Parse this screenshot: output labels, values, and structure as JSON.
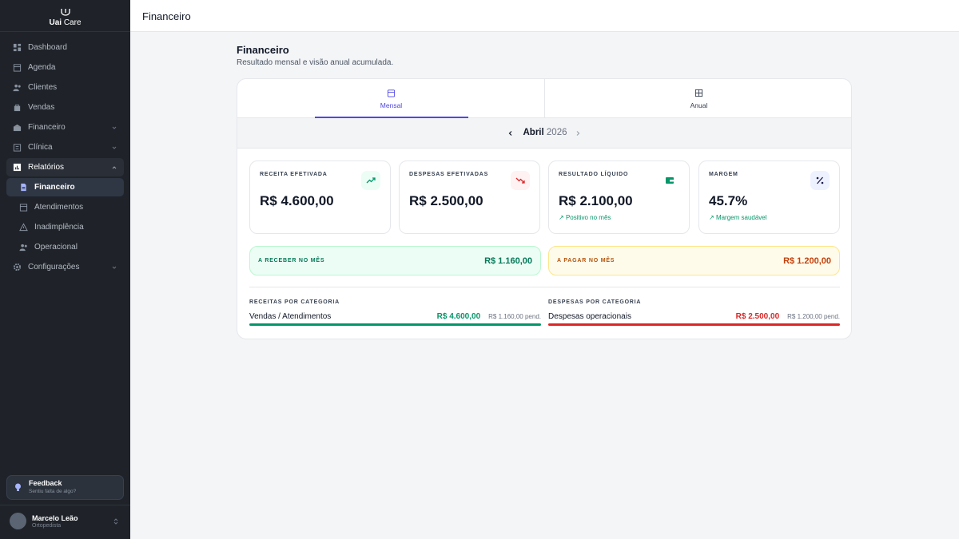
{
  "sidebar": {
    "logo": {
      "brand": "Uai",
      "brand_suffix": "Care"
    },
    "nav": [
      {
        "label": "Dashboard"
      },
      {
        "label": "Agenda"
      },
      {
        "label": "Clientes"
      },
      {
        "label": "Vendas"
      },
      {
        "label": "Financeiro"
      },
      {
        "label": "Clínica"
      },
      {
        "label": "Relatórios"
      }
    ],
    "sub_nav": [
      {
        "label": "Financeiro"
      },
      {
        "label": "Atendimentos"
      },
      {
        "label": "Inadimplência"
      },
      {
        "label": "Operacional"
      }
    ],
    "settings": {
      "label": "Configurações"
    },
    "feedback": {
      "title": "Feedback",
      "subtitle": "Sentiu falta de algo?"
    },
    "user": {
      "name": "Marcelo Leão",
      "role": "Ortopedista"
    }
  },
  "topbar": {
    "title": "Financeiro"
  },
  "page": {
    "title": "Financeiro",
    "subtitle": "Resultado mensal e visão anual acumulada."
  },
  "tabs": [
    {
      "label": "Mensal"
    },
    {
      "label": "Anual"
    }
  ],
  "period": {
    "month": "Abril",
    "year": "2026"
  },
  "kpis": [
    {
      "label": "RECEITA EFETIVADA",
      "value": "R$ 4.600,00"
    },
    {
      "label": "DESPESAS EFETIVADAS",
      "value": "R$ 2.500,00"
    },
    {
      "label": "RESULTADO LÍQUIDO",
      "value": "R$ 2.100,00",
      "note": "Positivo no mês"
    },
    {
      "label": "MARGEM",
      "value": "45.7%",
      "note": "Margem saudável"
    }
  ],
  "pending": {
    "receivable": {
      "label": "A RECEBER NO MÊS",
      "value": "R$ 1.160,00"
    },
    "payable": {
      "label": "A PAGAR NO MÊS",
      "value": "R$ 1.200,00"
    }
  },
  "categories": {
    "revenue": {
      "title": "RECEITAS POR CATEGORIA",
      "name": "Vendas / Atendimentos",
      "value": "R$ 4.600,00",
      "pending": "R$ 1.160,00 pend."
    },
    "expenses": {
      "title": "DESPESAS POR CATEGORIA",
      "name": "Despesas operacionais",
      "value": "R$ 2.500,00",
      "pending": "R$ 1.200,00 pend."
    }
  }
}
